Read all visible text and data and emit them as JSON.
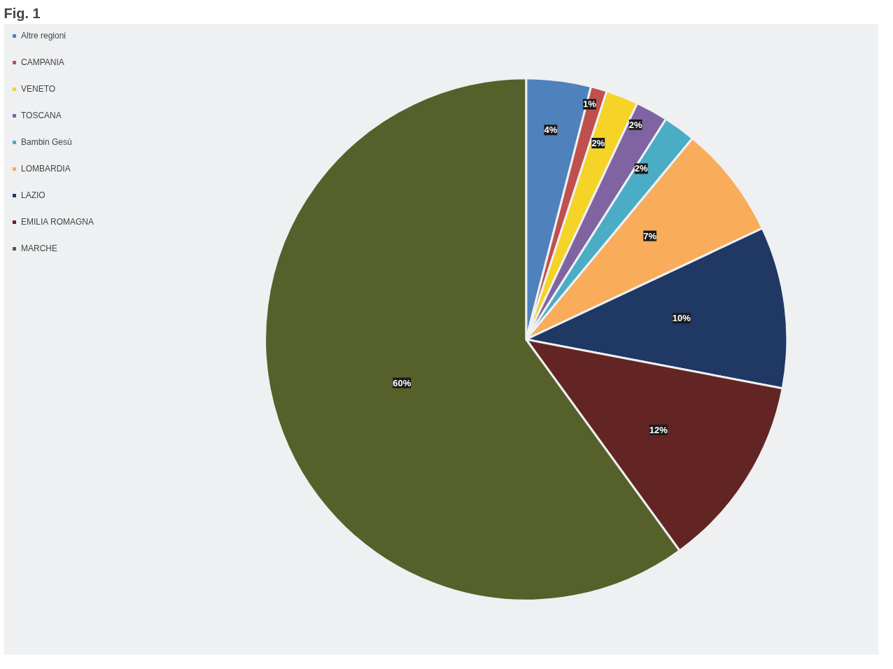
{
  "chart_data": {
    "type": "pie",
    "title": "Fig. 1",
    "categories": [
      "Altre regioni",
      "CAMPANIA",
      "VENETO",
      "TOSCANA",
      "Bambin Gesù",
      "LOMBARDIA",
      "LAZIO",
      "EMILIA ROMAGNA",
      "MARCHE"
    ],
    "values": [
      4,
      1,
      2,
      2,
      2,
      7,
      10,
      12,
      60
    ],
    "value_labels": [
      "4%",
      "1%",
      "2%",
      "2%",
      "2%",
      "7%",
      "10%",
      "12%",
      "60%"
    ],
    "colors": [
      "#4f81bd",
      "#c0504d",
      "#f5d327",
      "#8064a2",
      "#4bacc6",
      "#f9ac5a",
      "#1f3864",
      "#632523",
      "#56602a"
    ],
    "legend": "top left"
  }
}
